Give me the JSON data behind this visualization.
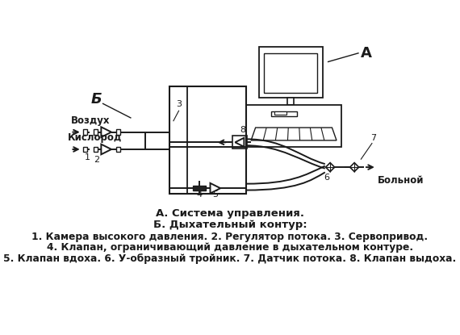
{
  "bg_color": "#ffffff",
  "line_color": "#1a1a1a",
  "text_color": "#1a1a1a",
  "caption_line1": "А. Система управления.",
  "caption_line2": "Б. Дыхательный контур:",
  "caption_line3": "1. Камера высокого давления. 2. Регулятор потока. 3. Сервопривод.",
  "caption_line4": "4. Клапан, ограничивающий давление в дыхательном контуре.",
  "caption_line5": "5. Клапан вдоха. 6. У-образный тройник. 7. Датчик потока. 8. Клапан выдоха.",
  "label_A": "А",
  "label_B": "Б",
  "label_vozdukh": "Воздух",
  "label_kislorod": "Кислород",
  "label_bolnoy": "Больной",
  "figsize": [
    5.7,
    4.15
  ],
  "dpi": 100
}
